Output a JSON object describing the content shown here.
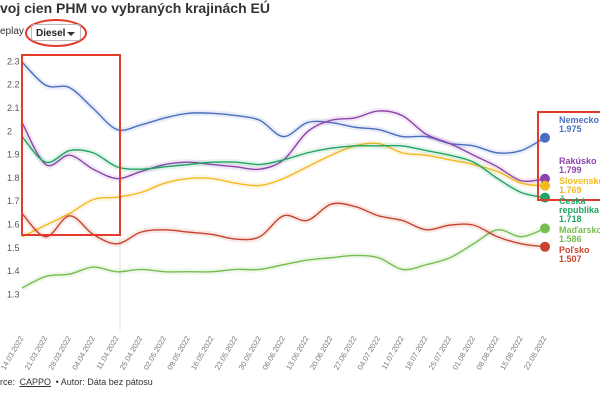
{
  "chart_data": {
    "type": "line",
    "title": "voj cien PHM vo vybraných krajinách EÚ",
    "controls": {
      "replay": "eplay",
      "fuel": "Diesel"
    },
    "source": "rce:",
    "source_link": "CAPPO",
    "author": "• Autor: Dáta bez pátosu",
    "categories": [
      "14.03.2022",
      "21.03.2022",
      "28.03.2022",
      "04.04.2022",
      "11.04.2022",
      "25.04.2022",
      "02.05.2022",
      "09.05.2022",
      "16.05.2022",
      "23.05.2022",
      "30.05.2022",
      "06.06.2022",
      "13.06.2022",
      "20.06.2022",
      "27.06.2022",
      "04.07.2022",
      "11.07.2022",
      "18.07.2022",
      "25.07.2022",
      "01.08.2022",
      "08.08.2022",
      "15.08.2022",
      "22.08.2022"
    ],
    "ylim": [
      1.15,
      2.33
    ],
    "yticks": [
      1.3,
      1.4,
      1.5,
      1.6,
      1.7,
      1.8,
      1.9,
      2,
      2.1,
      2.2,
      2.3
    ],
    "grid": false,
    "series": [
      {
        "name": "Nemecko",
        "color": "#4a6fc1",
        "values": [
          2.3,
          2.2,
          2.19,
          2.1,
          2.01,
          2.03,
          2.06,
          2.08,
          2.08,
          2.07,
          2.05,
          1.98,
          2.04,
          2.04,
          2.02,
          2.01,
          1.98,
          1.98,
          1.95,
          1.94,
          1.91,
          1.92,
          1.975
        ]
      },
      {
        "name": "Rakúsko",
        "color": "#8e44ad",
        "values": [
          2.04,
          1.86,
          1.9,
          1.84,
          1.8,
          1.83,
          1.86,
          1.87,
          1.86,
          1.85,
          1.84,
          1.88,
          2.0,
          2.05,
          2.06,
          2.09,
          2.07,
          1.99,
          1.95,
          1.9,
          1.85,
          1.79,
          1.799
        ]
      },
      {
        "name": "Slovensko",
        "color": "#f2b91e",
        "values": [
          1.55,
          1.6,
          1.65,
          1.71,
          1.72,
          1.74,
          1.78,
          1.8,
          1.8,
          1.78,
          1.77,
          1.8,
          1.85,
          1.9,
          1.94,
          1.95,
          1.91,
          1.9,
          1.88,
          1.86,
          1.83,
          1.78,
          1.769
        ]
      },
      {
        "name": "Česká republika",
        "color": "#1fa463",
        "values": [
          1.98,
          1.87,
          1.92,
          1.91,
          1.85,
          1.84,
          1.85,
          1.86,
          1.87,
          1.87,
          1.86,
          1.88,
          1.91,
          1.93,
          1.94,
          1.94,
          1.94,
          1.92,
          1.9,
          1.87,
          1.8,
          1.74,
          1.718
        ]
      },
      {
        "name": "Maďarsko",
        "color": "#76bd4f",
        "values": [
          1.33,
          1.38,
          1.39,
          1.42,
          1.4,
          1.41,
          1.4,
          1.4,
          1.4,
          1.41,
          1.41,
          1.43,
          1.45,
          1.46,
          1.47,
          1.46,
          1.41,
          1.43,
          1.46,
          1.52,
          1.58,
          1.55,
          1.586
        ]
      },
      {
        "name": "Poľsko",
        "color": "#c8432c",
        "values": [
          1.65,
          1.55,
          1.64,
          1.56,
          1.52,
          1.57,
          1.58,
          1.57,
          1.56,
          1.54,
          1.55,
          1.64,
          1.62,
          1.69,
          1.68,
          1.64,
          1.62,
          1.58,
          1.6,
          1.6,
          1.55,
          1.52,
          1.507
        ]
      }
    ]
  }
}
